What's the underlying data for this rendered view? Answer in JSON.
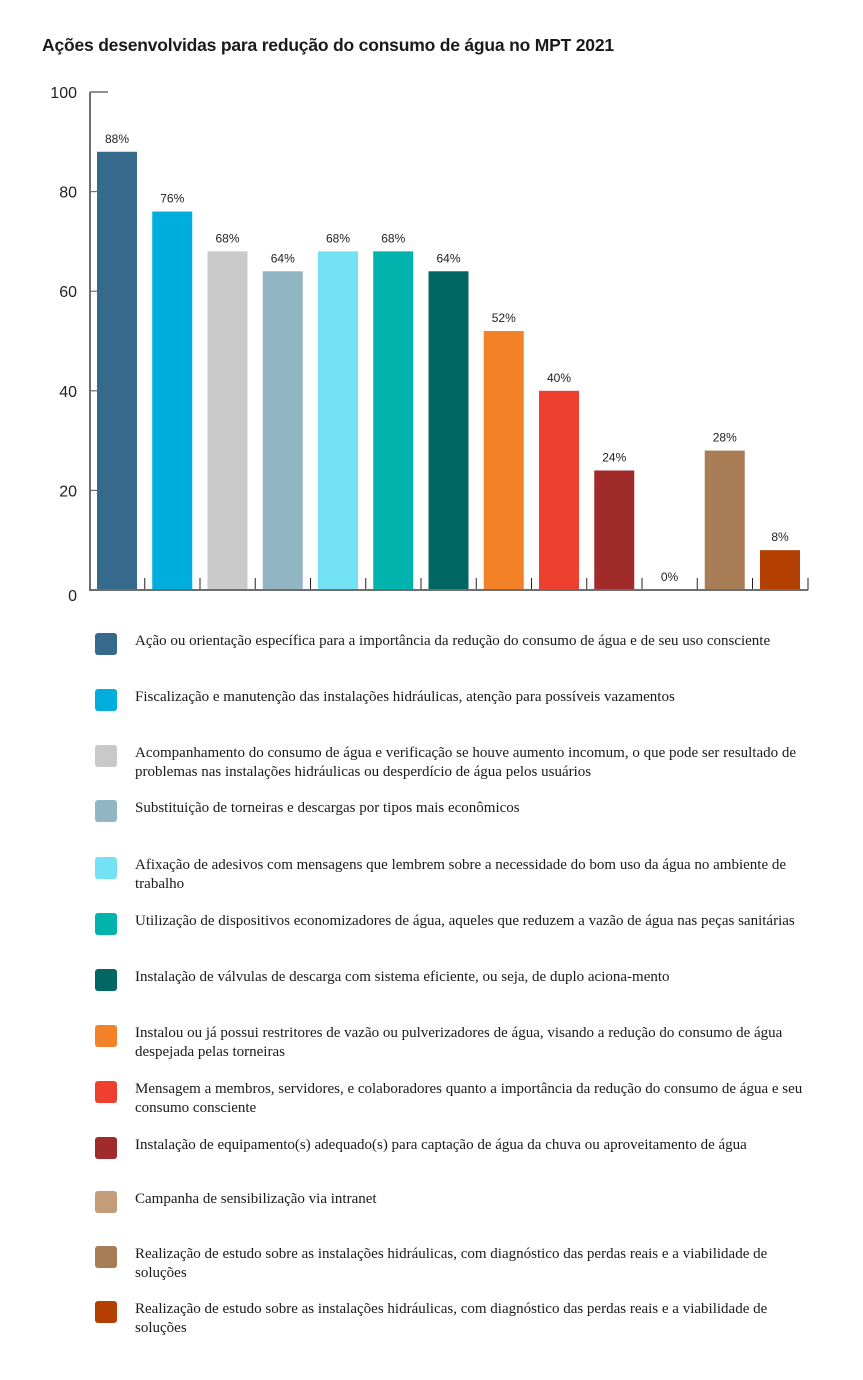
{
  "chart_data": {
    "type": "bar",
    "title": "Ações desenvolvidas para redução do consumo de água no MPT 2021",
    "xlabel": "",
    "ylabel": "",
    "ylim": [
      0,
      100
    ],
    "yticks": [
      "0",
      "20",
      "40",
      "60",
      "80",
      "100"
    ],
    "grid": false,
    "legend_position": "bottom",
    "categories": [
      "Ação ou orientação específica para a importância da redução do consumo de água e de seu uso consciente",
      "Fiscalização e manutenção das instalações hidráulicas, atenção para possíveis vazamentos",
      "Acompanhamento do consumo de água e verificação se houve aumento incomum, o que pode ser resultado de problemas nas instalações hidráulicas ou desperdício de água pelos usuários",
      "Substituição de torneiras e descargas por tipos mais econômicos",
      "Afixação de adesivos com mensagens que lembrem sobre a necessidade do bom uso da água no ambiente de trabalho",
      "Utilização de dispositivos economizadores de água, aqueles que reduzem a vazão de água nas peças sanitárias",
      "Instalação de válvulas de descarga com sistema eficiente, ou seja, de duplo aciona-mento",
      "Instalou ou já possui restritores de vazão ou pulverizadores de água, visando a redução do consumo de água despejada pelas torneiras",
      "Mensagem a membros, servidores, e colaboradores quanto a importância da redução do consumo de água e seu consumo consciente",
      "Instalação de equipamento(s) adequado(s) para captação de água da chuva ou aproveitamento de água",
      "Campanha de sensibilização via intranet",
      "Realização de estudo sobre as instalações hidráulicas, com diagnóstico das perdas reais e a viabilidade de soluções",
      "Realização de estudo sobre as instalações hidráulicas, com diagnóstico das perdas reais e a viabilidade de soluções"
    ],
    "values": [
      88,
      76,
      68,
      64,
      68,
      68,
      64,
      52,
      40,
      24,
      0,
      28,
      8
    ],
    "data_labels": [
      "88%",
      "76%",
      "68%",
      "64%",
      "68%",
      "68%",
      "64%",
      "52%",
      "40%",
      "24%",
      "0%",
      "28%",
      "8%"
    ],
    "colors": [
      "#356a8c",
      "#00aede",
      "#c9c9c9",
      "#92b5c4",
      "#72e2f4",
      "#00b3ad",
      "#026662",
      "#f28128",
      "#ee402f",
      "#a12b2b",
      "#c49c7a",
      "#a87d55",
      "#b33f03"
    ],
    "axis_color": "#6d6e70"
  }
}
